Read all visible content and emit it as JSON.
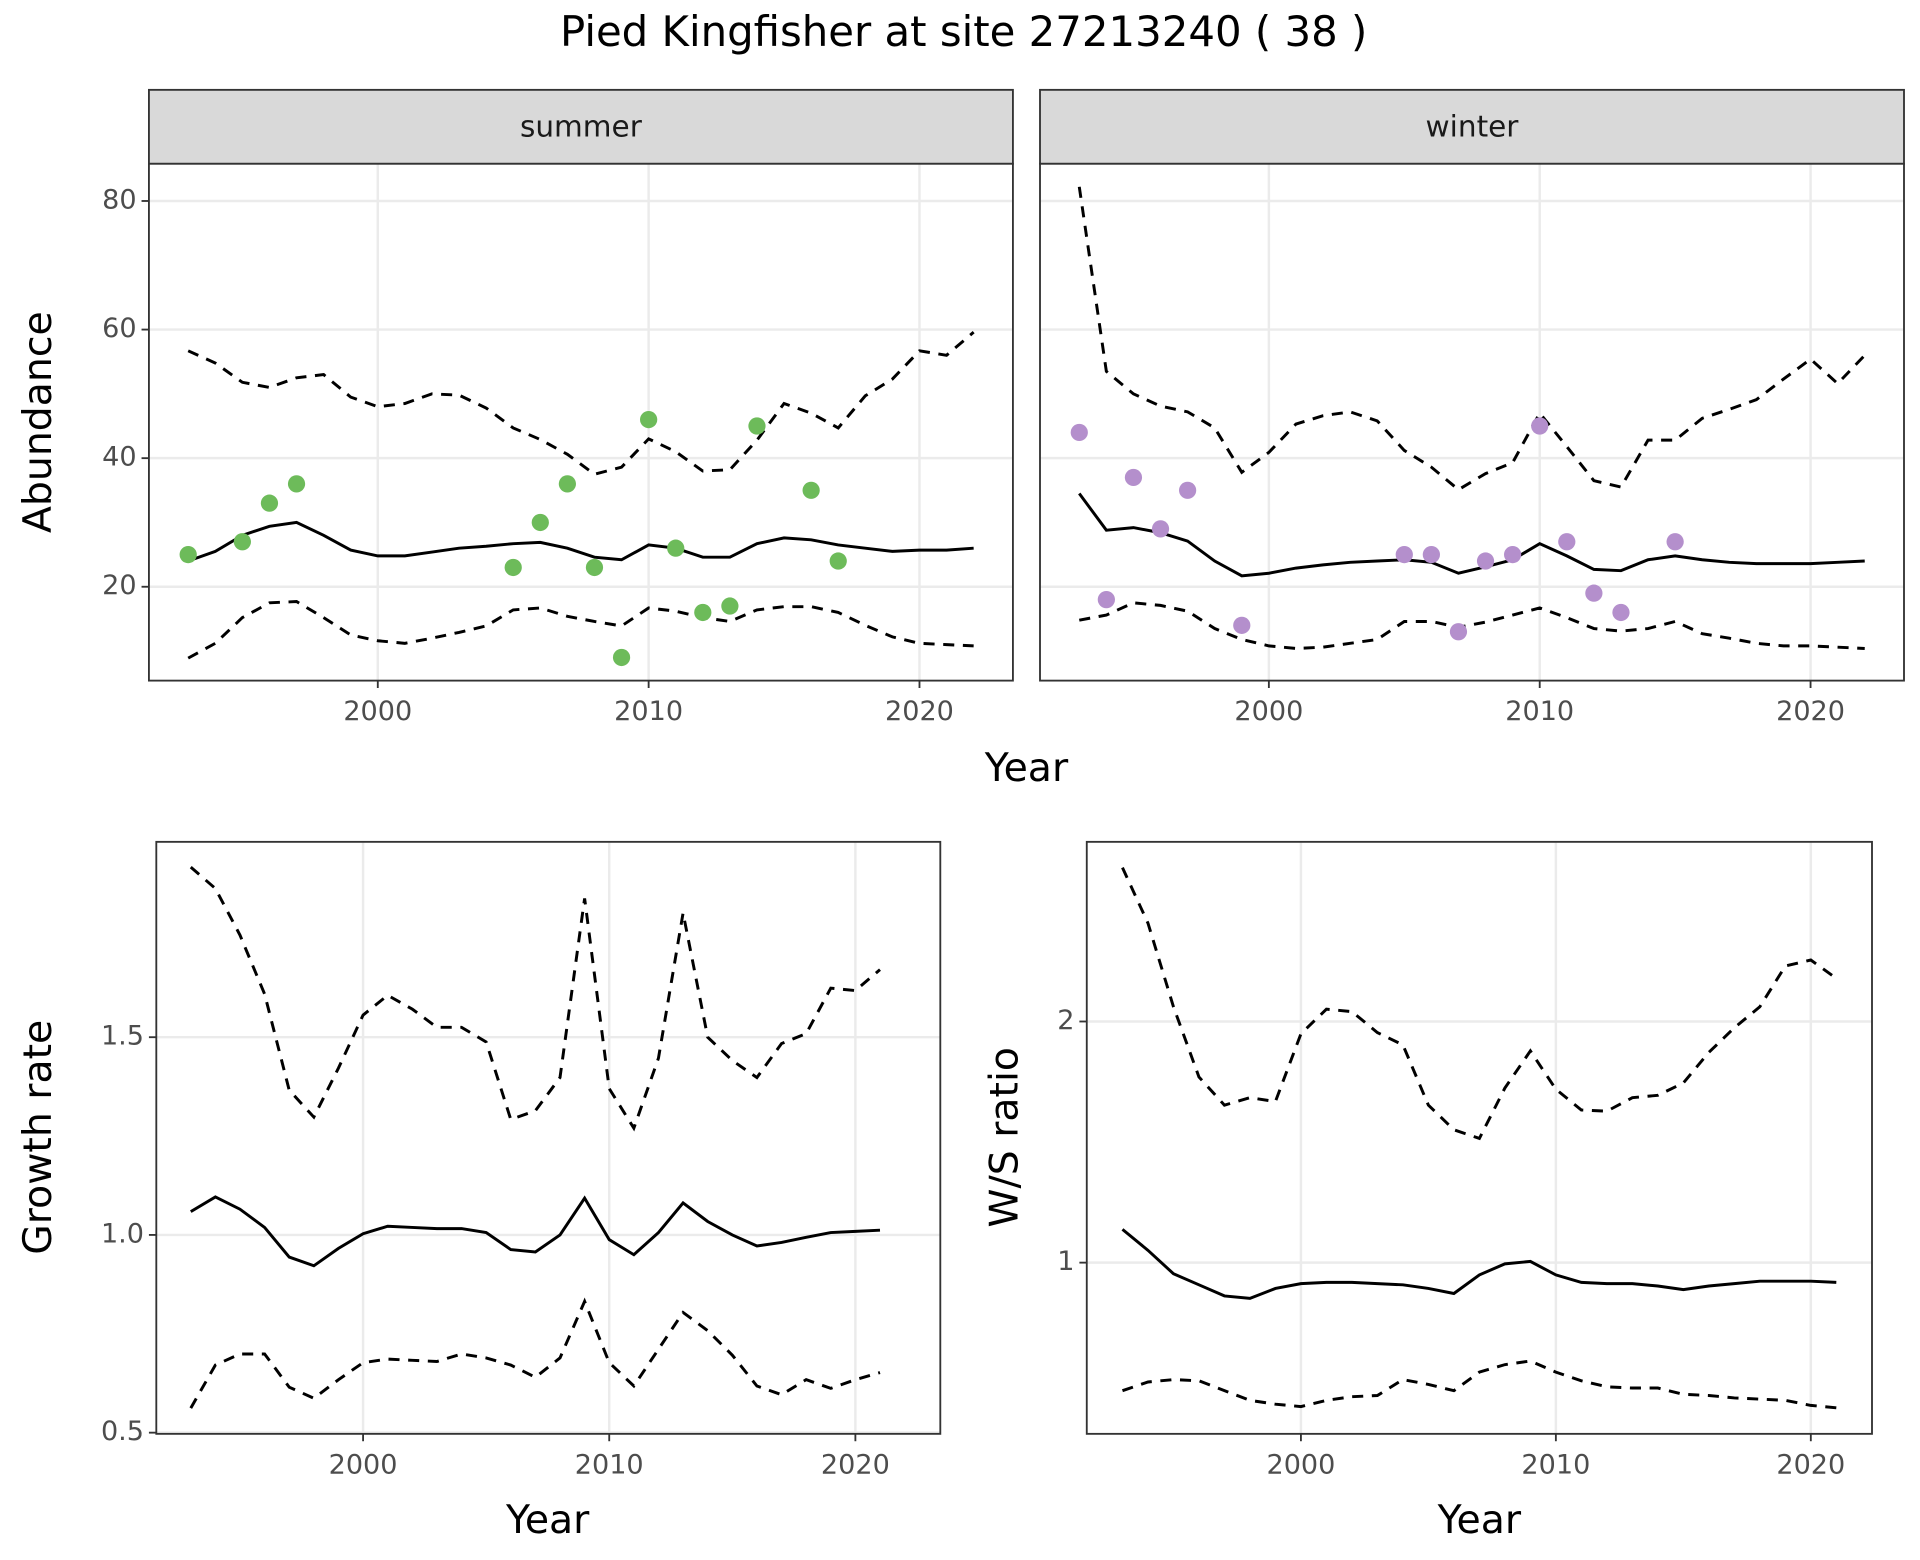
{
  "title": "Pied Kingfisher at site 27213240 ( 38 )",
  "chart_data": [
    {
      "type": "line",
      "panel": "summer",
      "y_label": "Abundance",
      "x_label": "Year",
      "x": [
        1993,
        1994,
        1995,
        1996,
        1997,
        1998,
        1999,
        2000,
        2001,
        2002,
        2003,
        2004,
        2005,
        2006,
        2007,
        2008,
        2009,
        2010,
        2011,
        2012,
        2013,
        2014,
        2015,
        2016,
        2017,
        2018,
        2019,
        2020,
        2021,
        2022
      ],
      "series": [
        {
          "color": "#000000",
          "dash": false,
          "values": [
            24,
            25.5,
            28,
            29.4,
            30,
            28,
            25.7,
            24.8,
            24.8,
            25.4,
            26,
            26.3,
            26.7,
            26.9,
            26,
            24.6,
            24.2,
            26.5,
            26,
            24.6,
            24.6,
            26.7,
            27.6,
            27.3,
            26.5,
            26,
            25.5,
            25.7,
            25.7,
            26
          ]
        },
        {
          "color": "#000000",
          "dash": true,
          "values": [
            56.7,
            54.8,
            51.8,
            51,
            52.5,
            53,
            49.5,
            48,
            48.5,
            50,
            49.8,
            47.8,
            44.7,
            42.9,
            40.6,
            37.5,
            38.6,
            43,
            41,
            38,
            38.2,
            42.8,
            48.5,
            47,
            44.7,
            49.7,
            52.3,
            56.7,
            56,
            59.6
          ]
        },
        {
          "color": "#000000",
          "dash": true,
          "values": [
            8.9,
            11.2,
            15.2,
            17.5,
            17.7,
            15.2,
            12.5,
            11.6,
            11.2,
            12,
            12.9,
            13.9,
            16.4,
            16.7,
            15.4,
            14.6,
            13.9,
            16.7,
            16.2,
            15.2,
            14.6,
            16.4,
            16.9,
            16.9,
            16,
            14,
            12.2,
            11.2,
            11,
            10.8
          ]
        }
      ],
      "points": {
        "color": "#6dbb5a",
        "x": [
          1993,
          1995,
          1996,
          1997,
          2005,
          2006,
          2007,
          2008,
          2009,
          2010,
          2011,
          2012,
          2013,
          2014,
          2016,
          2017
        ],
        "values": [
          25,
          27,
          33,
          36,
          23,
          30,
          36,
          23,
          9,
          46,
          26,
          16,
          17,
          45,
          35,
          24
        ]
      },
      "xlim": [
        1991.55,
        2023.45
      ],
      "ylim": [
        5.4,
        85.8
      ],
      "xticks": [
        2000,
        2010,
        2020
      ],
      "yticks": [
        20,
        40,
        60,
        80
      ],
      "grid": true
    },
    {
      "type": "line",
      "panel": "winter",
      "x": [
        1993,
        1994,
        1995,
        1996,
        1997,
        1998,
        1999,
        2000,
        2001,
        2002,
        2003,
        2004,
        2005,
        2006,
        2007,
        2008,
        2009,
        2010,
        2011,
        2012,
        2013,
        2014,
        2015,
        2016,
        2017,
        2018,
        2019,
        2020,
        2021,
        2022
      ],
      "series": [
        {
          "color": "#000000",
          "dash": false,
          "values": [
            34.5,
            28.8,
            29.2,
            28.4,
            27.1,
            24,
            21.7,
            22.1,
            22.9,
            23.4,
            23.8,
            24,
            24.2,
            23.8,
            22.1,
            23.1,
            24.2,
            26.7,
            24.8,
            22.7,
            22.5,
            24.2,
            24.8,
            24.2,
            23.8,
            23.6,
            23.6,
            23.6,
            23.8,
            24
          ]
        },
        {
          "color": "#000000",
          "dash": true,
          "values": [
            82.2,
            53.5,
            50,
            48.1,
            47.2,
            44.7,
            37.8,
            40.9,
            45.3,
            46.6,
            47.2,
            45.8,
            41.2,
            38.6,
            35.1,
            37.6,
            39.3,
            47,
            41.8,
            36.5,
            35.5,
            42.8,
            42.8,
            46.2,
            47.6,
            49.1,
            52.3,
            55.4,
            51.6,
            56
          ]
        },
        {
          "color": "#000000",
          "dash": true,
          "values": [
            14.8,
            15.6,
            17.5,
            17.1,
            16.2,
            13.5,
            11.8,
            10.8,
            10.4,
            10.6,
            11.2,
            11.8,
            14.6,
            14.6,
            13.7,
            14.5,
            15.6,
            16.7,
            15.2,
            13.5,
            13.1,
            13.5,
            14.6,
            12.7,
            12,
            11.2,
            10.8,
            10.8,
            10.6,
            10.4
          ]
        }
      ],
      "points": {
        "color": "#b48fcc",
        "x": [
          1993,
          1994,
          1995,
          1996,
          1997,
          1999,
          2005,
          2006,
          2007,
          2008,
          2009,
          2010,
          2011,
          2012,
          2013,
          2015
        ],
        "values": [
          44,
          18,
          37,
          29,
          35,
          14,
          25,
          25,
          13,
          24,
          25,
          45,
          27,
          19,
          16,
          27
        ]
      },
      "xlim": [
        1991.55,
        2023.45
      ],
      "xticks": [
        2000,
        2010,
        2020
      ],
      "grid": true
    },
    {
      "type": "line",
      "y_label": "Growth rate",
      "x_label": "Year",
      "x": [
        1993,
        1994,
        1995,
        1996,
        1997,
        1998,
        1999,
        2000,
        2001,
        2002,
        2003,
        2004,
        2005,
        2006,
        2007,
        2008,
        2009,
        2010,
        2011,
        2012,
        2013,
        2014,
        2015,
        2016,
        2017,
        2018,
        2019,
        2020,
        2021
      ],
      "series": [
        {
          "color": "#000000",
          "dash": false,
          "values": [
            1.059,
            1.096,
            1.065,
            1.019,
            0.944,
            0.922,
            0.966,
            1.003,
            1.022,
            1.019,
            1.016,
            1.016,
            1.006,
            0.963,
            0.957,
            1.0,
            1.093,
            0.988,
            0.95,
            1.006,
            1.081,
            1.034,
            1.0,
            0.972,
            0.981,
            0.994,
            1.006,
            1.009,
            1.012
          ]
        },
        {
          "color": "#000000",
          "dash": true,
          "values": [
            1.93,
            1.876,
            1.758,
            1.609,
            1.366,
            1.298,
            1.422,
            1.556,
            1.606,
            1.571,
            1.525,
            1.525,
            1.488,
            1.292,
            1.314,
            1.398,
            1.851,
            1.37,
            1.27,
            1.447,
            1.814,
            1.5,
            1.441,
            1.398,
            1.484,
            1.509,
            1.624,
            1.618,
            1.671
          ]
        },
        {
          "color": "#000000",
          "dash": true,
          "values": [
            0.562,
            0.671,
            0.699,
            0.699,
            0.615,
            0.587,
            0.634,
            0.677,
            0.686,
            0.683,
            0.68,
            0.699,
            0.689,
            0.671,
            0.64,
            0.689,
            0.832,
            0.677,
            0.618,
            0.711,
            0.804,
            0.758,
            0.696,
            0.618,
            0.596,
            0.634,
            0.612,
            0.634,
            0.652
          ]
        }
      ],
      "xlim": [
        1991.6,
        2023.45
      ],
      "ylim": [
        0.497,
        1.994
      ],
      "xticks": [
        2000,
        2010,
        2020
      ],
      "yticks": [
        0.5,
        {
          "value": 1,
          "label": "1.0"
        },
        1.5
      ],
      "grid": true
    },
    {
      "type": "line",
      "y_label": "W/S ratio",
      "x_label": "Year",
      "x": [
        1993,
        1994,
        1995,
        1996,
        1997,
        1998,
        1999,
        2000,
        2001,
        2002,
        2003,
        2004,
        2005,
        2006,
        2007,
        2008,
        2009,
        2010,
        2011,
        2012,
        2013,
        2014,
        2015,
        2016,
        2017,
        2018,
        2019,
        2020,
        2021
      ],
      "series": [
        {
          "color": "#000000",
          "dash": false,
          "values": [
            1.138,
            1.051,
            0.954,
            0.908,
            0.862,
            0.852,
            0.893,
            0.913,
            0.918,
            0.918,
            0.913,
            0.908,
            0.893,
            0.872,
            0.949,
            0.995,
            1.005,
            0.949,
            0.918,
            0.913,
            0.913,
            0.903,
            0.888,
            0.903,
            0.913,
            0.923,
            0.923,
            0.923,
            0.918
          ]
        },
        {
          "color": "#000000",
          "dash": true,
          "values": [
            2.638,
            2.408,
            2.061,
            1.77,
            1.653,
            1.684,
            1.668,
            1.949,
            2.051,
            2.041,
            1.954,
            1.903,
            1.653,
            1.551,
            1.515,
            1.724,
            1.878,
            1.719,
            1.633,
            1.628,
            1.684,
            1.694,
            1.745,
            1.872,
            1.974,
            2.061,
            2.23,
            2.255,
            2.179
          ]
        },
        {
          "color": "#000000",
          "dash": true,
          "values": [
            0.469,
            0.505,
            0.515,
            0.51,
            0.469,
            0.429,
            0.413,
            0.403,
            0.429,
            0.444,
            0.449,
            0.515,
            0.495,
            0.469,
            0.546,
            0.577,
            0.592,
            0.546,
            0.51,
            0.485,
            0.48,
            0.48,
            0.454,
            0.449,
            0.439,
            0.434,
            0.429,
            0.408,
            0.398
          ]
        }
      ],
      "xlim": [
        1991.6,
        2022.4
      ],
      "ylim": [
        0.29,
        2.745
      ],
      "xticks": [
        2000,
        2010,
        2020
      ],
      "yticks": [
        1,
        2
      ],
      "grid": true
    }
  ]
}
